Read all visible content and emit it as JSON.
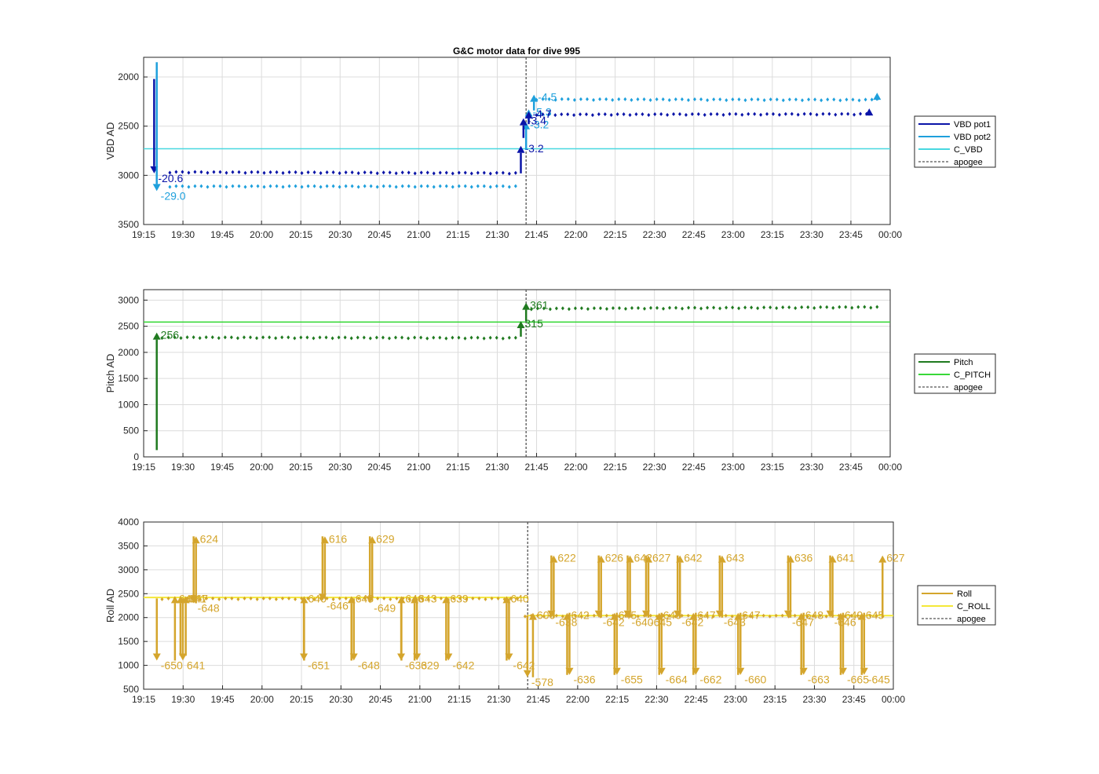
{
  "figure_title": "G&C motor data for dive 995",
  "colors": {
    "vbd_pot1": "#0a14a8",
    "vbd_pot2": "#1ea0dc",
    "c_vbd": "#48d8e0",
    "pitch": "#1f7a1f",
    "c_pitch": "#38d838",
    "roll": "#d4a52c",
    "c_roll": "#f4e838",
    "apogee": "#555555"
  },
  "chart_data": [
    {
      "type": "line",
      "ylabel": "VBD AD",
      "ylim": [
        3500,
        1800
      ],
      "y_reversed": true,
      "yticks": [
        "2000",
        "2500",
        "3000",
        "3500"
      ],
      "ytick_values": [
        2000,
        2500,
        3000,
        3500
      ],
      "xlim": [
        "19:15",
        "00:00"
      ],
      "xticks": [
        "19:15",
        "19:30",
        "19:45",
        "20:00",
        "20:15",
        "20:30",
        "20:45",
        "21:00",
        "21:15",
        "21:30",
        "21:45",
        "22:00",
        "22:15",
        "22:30",
        "22:45",
        "23:00",
        "23:15",
        "23:30",
        "23:45",
        "00:00"
      ],
      "grid": true,
      "legend": [
        "VBD pot1",
        "VBD pot2",
        "C_VBD",
        "apogee"
      ],
      "legend_position": "outside-right",
      "apogee_time": "21:41",
      "series": [
        {
          "name": "VBD pot1",
          "points_before": [
            [
              "19:25",
              2965
            ],
            [
              "21:37",
              2975
            ]
          ],
          "points_after": [
            [
              "21:45",
              2380
            ],
            [
              "23:51",
              2375
            ]
          ]
        },
        {
          "name": "VBD pot2",
          "points_before": [
            [
              "19:25",
              3110
            ],
            [
              "21:37",
              3110
            ]
          ],
          "points_after": [
            [
              "21:45",
              2225
            ],
            [
              "23:53",
              2230
            ]
          ]
        },
        {
          "name": "C_VBD",
          "value": 2730
        }
      ],
      "arrows": [
        {
          "series": "VBD pot1",
          "time": "19:19",
          "from": 2020,
          "to": 2980,
          "label": "-20.6"
        },
        {
          "series": "VBD pot2",
          "time": "19:20",
          "from": 1850,
          "to": 3160,
          "label": "-29.0"
        },
        {
          "series": "VBD pot1",
          "time": "21:39",
          "from": 2980,
          "to": 2700,
          "label": "-3.2"
        },
        {
          "series": "VBD pot2",
          "time": "21:41",
          "from": 2740,
          "to": 2460,
          "label": "-3.2"
        },
        {
          "series": "VBD pot1",
          "time": "21:40",
          "from": 2620,
          "to": 2420,
          "label": "-3.4"
        },
        {
          "series": "VBD pot2",
          "time": "21:42",
          "from": 2460,
          "to": 2330,
          "label": "-5.3"
        },
        {
          "series": "VBD pot1",
          "time": "21:42",
          "from": 2480,
          "to": 2350,
          "label": "-4.7"
        },
        {
          "series": "VBD pot2",
          "time": "21:44",
          "from": 2340,
          "to": 2180,
          "label": "-4.5"
        },
        {
          "series": "VBD pot1",
          "time": "23:52",
          "from": 2380,
          "to": 2320,
          "label": ""
        },
        {
          "series": "VBD pot2",
          "time": "23:55",
          "from": 2240,
          "to": 2160,
          "label": ""
        }
      ],
      "arrow_label_positions": {}
    },
    {
      "type": "line",
      "ylabel": "Pitch AD",
      "ylim": [
        0,
        3200
      ],
      "yticks": [
        "0",
        "500",
        "1000",
        "1500",
        "2000",
        "2500",
        "3000"
      ],
      "ytick_values": [
        0,
        500,
        1000,
        1500,
        2000,
        2500,
        3000
      ],
      "xlim": [
        "19:15",
        "00:00"
      ],
      "xticks": [
        "19:15",
        "19:30",
        "19:45",
        "20:00",
        "20:15",
        "20:30",
        "20:45",
        "21:00",
        "21:15",
        "21:30",
        "21:45",
        "22:00",
        "22:15",
        "22:30",
        "22:45",
        "23:00",
        "23:15",
        "23:30",
        "23:45",
        "00:00"
      ],
      "grid": true,
      "legend": [
        "Pitch",
        "C_PITCH",
        "apogee"
      ],
      "legend_position": "outside-right",
      "apogee_time": "21:41",
      "series": [
        {
          "name": "Pitch",
          "points_before": [
            [
              "19:22",
              2290
            ],
            [
              "21:37",
              2280
            ]
          ],
          "points_after": [
            [
              "21:43",
              2840
            ],
            [
              "23:55",
              2870
            ]
          ]
        },
        {
          "name": "C_PITCH",
          "value": 2580
        }
      ],
      "arrows": [
        {
          "series": "Pitch",
          "time": "19:20",
          "from": 130,
          "to": 2380,
          "label": "256"
        },
        {
          "series": "Pitch",
          "time": "21:39",
          "from": 2300,
          "to": 2600,
          "label": "315"
        },
        {
          "series": "Pitch",
          "time": "21:41",
          "from": 2600,
          "to": 2950,
          "label": "361"
        }
      ]
    },
    {
      "type": "line",
      "ylabel": "Roll AD",
      "ylim": [
        500,
        4000
      ],
      "yticks": [
        "500",
        "1000",
        "1500",
        "2000",
        "2500",
        "3000",
        "3500",
        "4000"
      ],
      "ytick_values": [
        500,
        1000,
        1500,
        2000,
        2500,
        3000,
        3500,
        4000
      ],
      "xlim": [
        "19:15",
        "00:00"
      ],
      "xticks": [
        "19:15",
        "19:30",
        "19:45",
        "20:00",
        "20:15",
        "20:30",
        "20:45",
        "21:00",
        "21:15",
        "21:30",
        "21:45",
        "22:00",
        "22:15",
        "22:30",
        "22:45",
        "23:00",
        "23:15",
        "23:30",
        "23:45",
        "00:00"
      ],
      "grid": true,
      "legend": [
        "Roll",
        "C_ROLL",
        "apogee"
      ],
      "legend_position": "outside-right",
      "apogee_time": "21:41",
      "series": [
        {
          "name": "Roll",
          "points_before": [
            [
              "19:22",
              2400
            ],
            [
              "21:37",
              2400
            ]
          ],
          "points_after": [
            [
              "21:40",
              2040
            ],
            [
              "23:56",
              2040
            ]
          ]
        },
        {
          "name": "C_ROLL",
          "value_before": 2420,
          "value_after": 2040
        }
      ],
      "arrows": [
        {
          "time": "19:20",
          "from": 2400,
          "to": 1100,
          "label": "-650"
        },
        {
          "time": "19:26",
          "from": 1100,
          "to": 2450,
          "label": "646"
        },
        {
          "time": "19:29",
          "from": 1200,
          "to": 2450,
          "label": "-641"
        },
        {
          "time": "19:29",
          "from": 2400,
          "to": 1100,
          "label": "641"
        },
        {
          "time": "19:31",
          "from": 1200,
          "to": 2450,
          "label": "647"
        },
        {
          "time": "19:34",
          "from": 2300,
          "to": 3700,
          "label": "624"
        },
        {
          "time": "19:34",
          "from": 3700,
          "to": 2300,
          "label": "-648"
        },
        {
          "time": "20:15",
          "from": 2400,
          "to": 1100,
          "label": "-651"
        },
        {
          "time": "20:16",
          "from": 1100,
          "to": 2450,
          "label": "646"
        },
        {
          "time": "20:23",
          "from": 2400,
          "to": 3700,
          "label": "616"
        },
        {
          "time": "20:23",
          "from": 3700,
          "to": 2350,
          "label": "-646"
        },
        {
          "time": "20:34",
          "from": 2400,
          "to": 1100,
          "label": "-648"
        },
        {
          "time": "20:34",
          "from": 1100,
          "to": 2450,
          "label": "645"
        },
        {
          "time": "20:41",
          "from": 2400,
          "to": 3700,
          "label": "629"
        },
        {
          "time": "20:41",
          "from": 3700,
          "to": 2300,
          "label": "-649"
        },
        {
          "time": "20:52",
          "from": 2400,
          "to": 1100,
          "label": "-633"
        },
        {
          "time": "20:53",
          "from": 1100,
          "to": 2450,
          "label": "646"
        },
        {
          "time": "20:58",
          "from": 2400,
          "to": 1100,
          "label": "629"
        },
        {
          "time": "20:58",
          "from": 1100,
          "to": 2450,
          "label": "643"
        },
        {
          "time": "21:10",
          "from": 2400,
          "to": 1100,
          "label": "-642"
        },
        {
          "time": "21:10",
          "from": 1100,
          "to": 2450,
          "label": "639"
        },
        {
          "time": "21:33",
          "from": 2400,
          "to": 1100,
          "label": "-642"
        },
        {
          "time": "21:33",
          "from": 1100,
          "to": 2450,
          "label": "640"
        },
        {
          "time": "21:40",
          "from": 2050,
          "to": 750,
          "label": "-578"
        },
        {
          "time": "21:43",
          "from": 750,
          "to": 2100,
          "label": "606"
        },
        {
          "time": "21:50",
          "from": 2000,
          "to": 3300,
          "label": "622"
        },
        {
          "time": "21:50",
          "from": 3300,
          "to": 2000,
          "label": "-638"
        },
        {
          "time": "21:56",
          "from": 2100,
          "to": 800,
          "label": "-636"
        },
        {
          "time": "21:56",
          "from": 800,
          "to": 2100,
          "label": "642"
        },
        {
          "time": "22:08",
          "from": 2000,
          "to": 3300,
          "label": "626"
        },
        {
          "time": "22:08",
          "from": 3300,
          "to": 2000,
          "label": "-642"
        },
        {
          "time": "22:14",
          "from": 2100,
          "to": 800,
          "label": "-655"
        },
        {
          "time": "22:14",
          "from": 800,
          "to": 2100,
          "label": "645"
        },
        {
          "time": "22:19",
          "from": 2000,
          "to": 3300,
          "label": "642"
        },
        {
          "time": "22:19",
          "from": 3300,
          "to": 2000,
          "label": "-640"
        },
        {
          "time": "22:26",
          "from": 2000,
          "to": 3300,
          "label": "627"
        },
        {
          "time": "22:26",
          "from": 3300,
          "to": 2000,
          "label": "-645"
        },
        {
          "time": "22:31",
          "from": 2100,
          "to": 800,
          "label": "-664"
        },
        {
          "time": "22:31",
          "from": 800,
          "to": 2100,
          "label": "645"
        },
        {
          "time": "22:38",
          "from": 2000,
          "to": 3300,
          "label": "642"
        },
        {
          "time": "22:38",
          "from": 3300,
          "to": 2000,
          "label": "-642"
        },
        {
          "time": "22:44",
          "from": 2100,
          "to": 800,
          "label": "-662"
        },
        {
          "time": "22:44",
          "from": 800,
          "to": 2100,
          "label": "647"
        },
        {
          "time": "22:54",
          "from": 2000,
          "to": 3300,
          "label": "643"
        },
        {
          "time": "22:54",
          "from": 3300,
          "to": 2000,
          "label": "-643"
        },
        {
          "time": "23:01",
          "from": 2100,
          "to": 800,
          "label": "-660"
        },
        {
          "time": "23:01",
          "from": 800,
          "to": 2100,
          "label": "647"
        },
        {
          "time": "23:20",
          "from": 2000,
          "to": 3300,
          "label": "636"
        },
        {
          "time": "23:20",
          "from": 3300,
          "to": 2000,
          "label": "-647"
        },
        {
          "time": "23:25",
          "from": 2100,
          "to": 800,
          "label": "-663"
        },
        {
          "time": "23:25",
          "from": 800,
          "to": 2100,
          "label": "648"
        },
        {
          "time": "23:36",
          "from": 2000,
          "to": 3300,
          "label": "641"
        },
        {
          "time": "23:36",
          "from": 3300,
          "to": 2000,
          "label": "-646"
        },
        {
          "time": "23:40",
          "from": 2100,
          "to": 800,
          "label": "-665"
        },
        {
          "time": "23:40",
          "from": 800,
          "to": 2100,
          "label": "649"
        },
        {
          "time": "23:48",
          "from": 2100,
          "to": 800,
          "label": "-645"
        },
        {
          "time": "23:48",
          "from": 800,
          "to": 2100,
          "label": "645"
        },
        {
          "time": "23:55",
          "from": 2000,
          "to": 3300,
          "label": "627"
        }
      ]
    }
  ]
}
